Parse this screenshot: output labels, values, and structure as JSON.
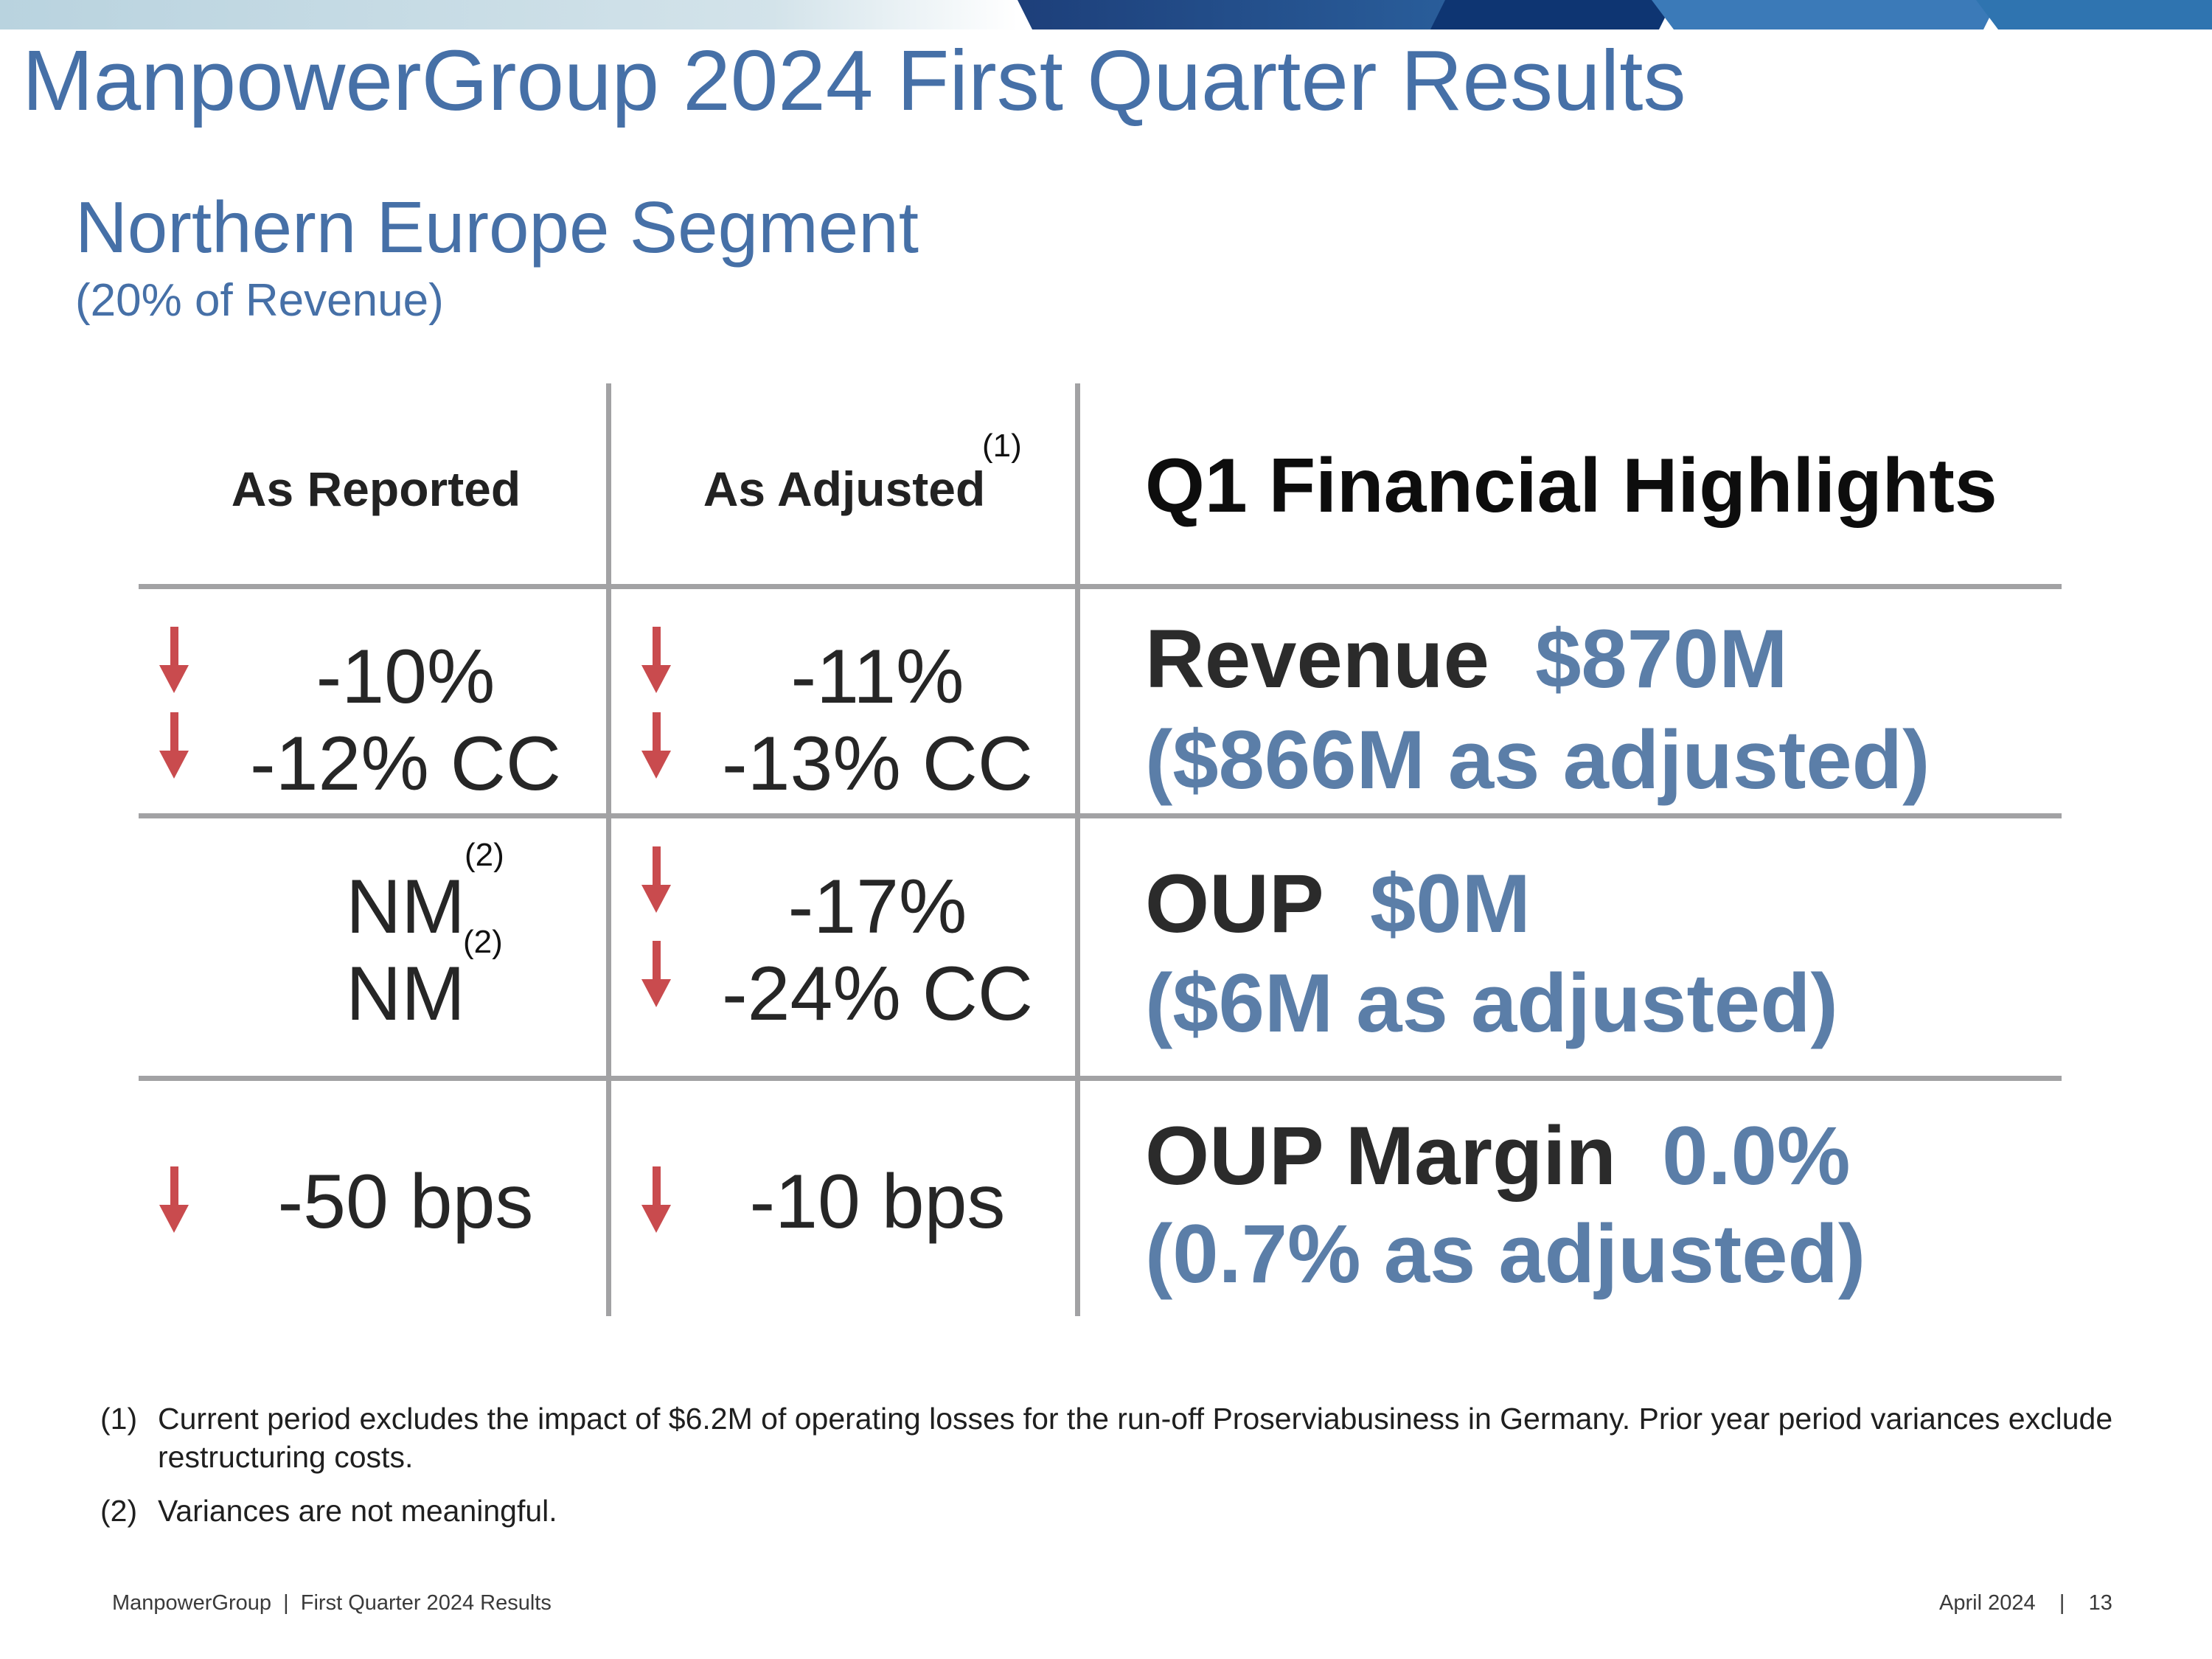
{
  "header": {
    "title": "ManpowerGroup 2024 First Quarter Results"
  },
  "segment": {
    "name": "Northern Europe Segment",
    "revenue_share": "(20% of Revenue)"
  },
  "table": {
    "col_reported": "As Reported",
    "col_adjusted": "As Adjusted",
    "col_adjusted_note": "(1)",
    "highlights_heading": "Q1 Financial Highlights",
    "rows": [
      {
        "reported": [
          "-10%",
          "-12% CC"
        ],
        "adjusted": [
          "-11%",
          "-13% CC"
        ],
        "label": "Revenue",
        "value": "$870M",
        "adjusted_text": "($866M as adjusted)"
      },
      {
        "reported": [
          "NM",
          "NM"
        ],
        "reported_note": "(2)",
        "adjusted": [
          "-17%",
          "-24% CC"
        ],
        "label": "OUP",
        "value": "$0M",
        "adjusted_text": "($6M as adjusted)"
      },
      {
        "reported": [
          "-50 bps"
        ],
        "adjusted": [
          "-10 bps"
        ],
        "label": "OUP Margin",
        "value": "0.0%",
        "adjusted_text": "(0.7% as adjusted)"
      }
    ]
  },
  "footnotes": [
    {
      "num": "(1)",
      "text": "Current period excludes the impact of $6.2M of operating losses for the run-off Proserviabusiness in Germany. Prior year period variances exclude restructuring costs."
    },
    {
      "num": "(2)",
      "text": "Variances are not meaningful."
    }
  ],
  "footer": {
    "left": "ManpowerGroup  |  First Quarter 2024 Results",
    "right": "April 2024    |    13"
  },
  "icons": {
    "down_arrow": "arrow-down-icon"
  },
  "colors": {
    "title_blue": "#4670a7",
    "value_blue": "#5b7ea8",
    "arrow_red": "#c94b4e",
    "grid_gray": "#a2a2a4"
  }
}
